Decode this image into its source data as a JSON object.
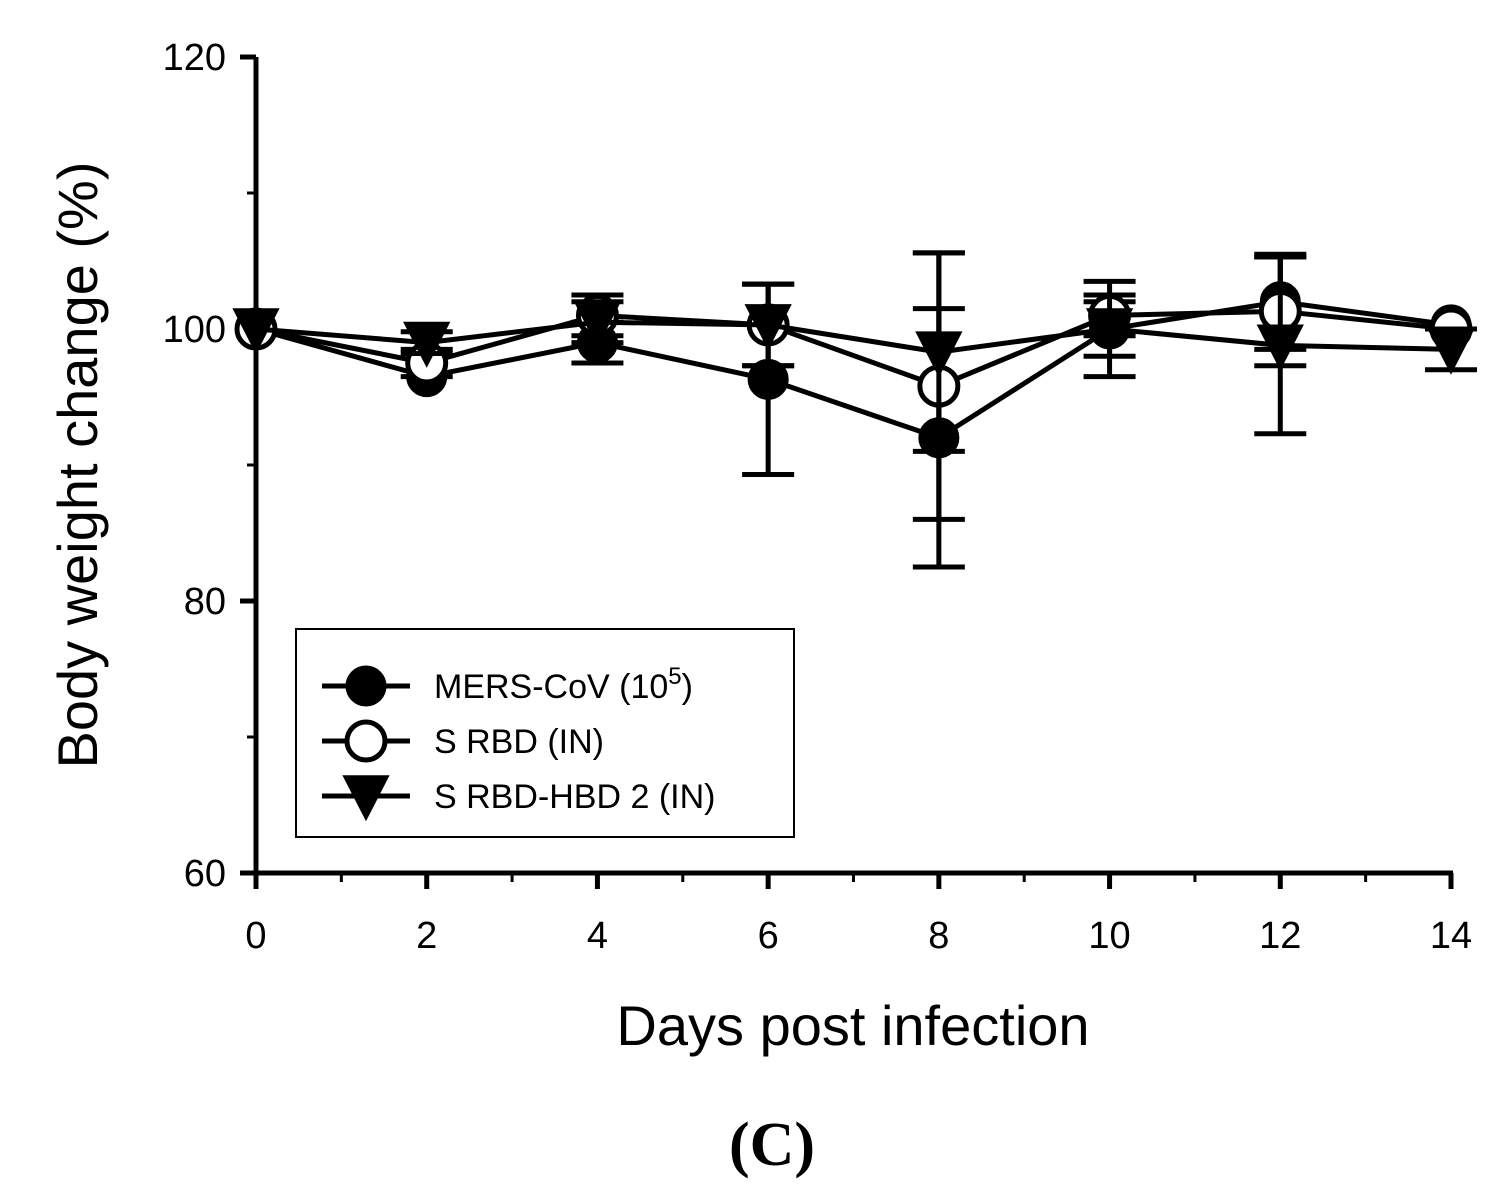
{
  "chart_data": {
    "type": "line",
    "xlabel": "Days post infection",
    "ylabel": "Body weight change (%)",
    "panel_label": "(C)",
    "xlim": [
      0,
      14
    ],
    "ylim": [
      60,
      120
    ],
    "xticks": [
      0,
      2,
      4,
      6,
      8,
      10,
      12,
      14
    ],
    "yticks": [
      60,
      80,
      100,
      120
    ],
    "x": [
      0,
      2,
      4,
      6,
      8,
      10,
      12,
      14
    ],
    "series": [
      {
        "name": "MERS-CoV (10",
        "name_sup": "5",
        "name_suffix": ")",
        "marker": "filled-circle",
        "values": [
          100,
          96.5,
          99,
          96.3,
          92,
          100,
          102,
          100.3
        ],
        "errors": [
          0,
          0,
          1.5,
          7,
          9.5,
          2,
          3.5,
          0
        ]
      },
      {
        "name": "S RBD (IN)",
        "marker": "open-circle",
        "values": [
          100,
          97.5,
          101,
          100.3,
          95.8,
          101,
          101.3,
          100
        ],
        "errors": [
          0,
          1,
          1.5,
          3,
          9.8,
          1.5,
          4,
          0
        ]
      },
      {
        "name": "S RBD-HBD 2 (IN)",
        "marker": "filled-triangle-down",
        "values": [
          100,
          99,
          100.5,
          100.3,
          98.3,
          100,
          98.8,
          98.5
        ],
        "errors": [
          0,
          0.8,
          1.5,
          3,
          7.3,
          3.5,
          6.5,
          1.5
        ]
      }
    ],
    "legend_position": "lower-left"
  }
}
